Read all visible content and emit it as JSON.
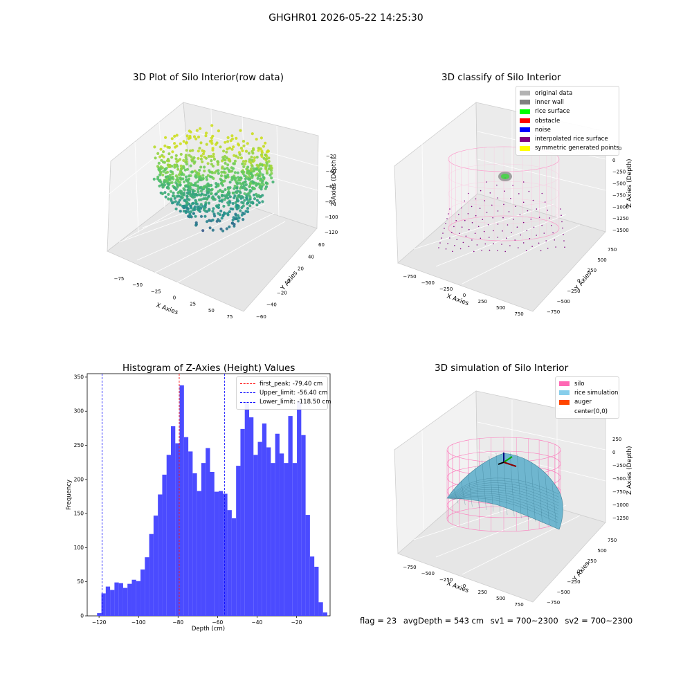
{
  "figure_title": "GHGHR01 2026-05-22 14:25:30",
  "footer": {
    "flag": "flag = 23",
    "avg_depth": "avgDepth = 543 cm",
    "sv1": "sv1 = 700~2300",
    "sv2": "sv2 = 700~2300"
  },
  "chart_data": [
    {
      "type": "scatter",
      "title": "3D Plot of Silo Interior(row data)",
      "xlabel": "X Axies",
      "ylabel": "Y Axies",
      "zlabel": "Z Axies (Depth)",
      "x_ticks": [
        "−75",
        "−50",
        "−25",
        "0",
        "25",
        "50",
        "75"
      ],
      "y_ticks": [
        "−60",
        "−40",
        "−20",
        "0",
        "20",
        "40",
        "60"
      ],
      "z_ticks": [
        "−120",
        "−100",
        "−80",
        "−60",
        "−40",
        "−20"
      ],
      "zlim": [
        -130,
        -5
      ],
      "colormap": "viridis"
    },
    {
      "type": "scatter",
      "title": "3D classify of Silo Interior",
      "xlabel": "X Axies",
      "ylabel": "Y Axies",
      "zlabel": "Z Axies (Depth)",
      "x_ticks": [
        "−750",
        "−500",
        "−250",
        "0",
        "250",
        "500",
        "750"
      ],
      "y_ticks": [
        "−750",
        "−500",
        "−250",
        "0",
        "250",
        "500",
        "750"
      ],
      "z_ticks": [
        "−1500",
        "−1250",
        "−1000",
        "−750",
        "−500",
        "−250",
        "0",
        "250"
      ],
      "legend": [
        {
          "label": "original data",
          "color": "#b3b3b3"
        },
        {
          "label": "inner wall",
          "color": "#808080"
        },
        {
          "label": "rice surface",
          "color": "#00ff00"
        },
        {
          "label": "obstacle",
          "color": "#ff0000"
        },
        {
          "label": "noise",
          "color": "#0000ff"
        },
        {
          "label": "interpolated rice surface",
          "color": "#800080"
        },
        {
          "label": "symmetric generated points",
          "color": "#ffff00"
        }
      ]
    },
    {
      "type": "bar",
      "title": "Histogram of Z-Axies (Height) Values",
      "xlabel": "Depth (cm)",
      "ylabel": "Frequency",
      "xlim": [
        -126,
        -3
      ],
      "ylim": [
        0,
        355
      ],
      "x_ticks": [
        -120,
        -100,
        -80,
        -60,
        -40,
        -20
      ],
      "y_ticks": [
        0,
        50,
        100,
        150,
        200,
        250,
        300,
        350
      ],
      "bar_color": "#4b4bff",
      "bin_edges_start": -121,
      "bin_width": 2.2,
      "values": [
        4,
        33,
        43,
        38,
        49,
        48,
        41,
        47,
        53,
        51,
        68,
        86,
        120,
        147,
        178,
        207,
        236,
        278,
        253,
        338,
        262,
        241,
        209,
        183,
        224,
        246,
        211,
        182,
        183,
        179,
        155,
        143,
        220,
        274,
        313,
        291,
        236,
        255,
        282,
        247,
        224,
        267,
        238,
        224,
        293,
        224,
        315,
        265,
        148,
        87,
        72,
        20,
        5
      ],
      "vlines": [
        {
          "label": "first_peak: -79.40 cm",
          "x": -79.4,
          "color": "#ff0000"
        },
        {
          "label": "Upper_limit: -56.40 cm",
          "x": -56.4,
          "color": "#0000ff"
        },
        {
          "label": "Lower_limit: -118.50 cm",
          "x": -118.5,
          "color": "#0000ff"
        }
      ]
    },
    {
      "type": "area",
      "title": "3D simulation of Silo Interior",
      "xlabel": "X Axies",
      "ylabel": "Y Axies",
      "zlabel": "Z Axies (Depth)",
      "x_ticks": [
        "−750",
        "−500",
        "−250",
        "0",
        "250",
        "500",
        "750"
      ],
      "y_ticks": [
        "−750",
        "−500",
        "−250",
        "0",
        "250",
        "500",
        "750"
      ],
      "z_ticks": [
        "−1250",
        "−1000",
        "−750",
        "−500",
        "−250",
        "0",
        "250"
      ],
      "legend": [
        {
          "label": "silo",
          "color": "#ff69b4"
        },
        {
          "label": "rice simulation",
          "color": "#87ceeb"
        },
        {
          "label": "auger",
          "color": "#ff4500"
        },
        {
          "label": "center(0,0)",
          "color": "#ffffff"
        }
      ]
    }
  ]
}
